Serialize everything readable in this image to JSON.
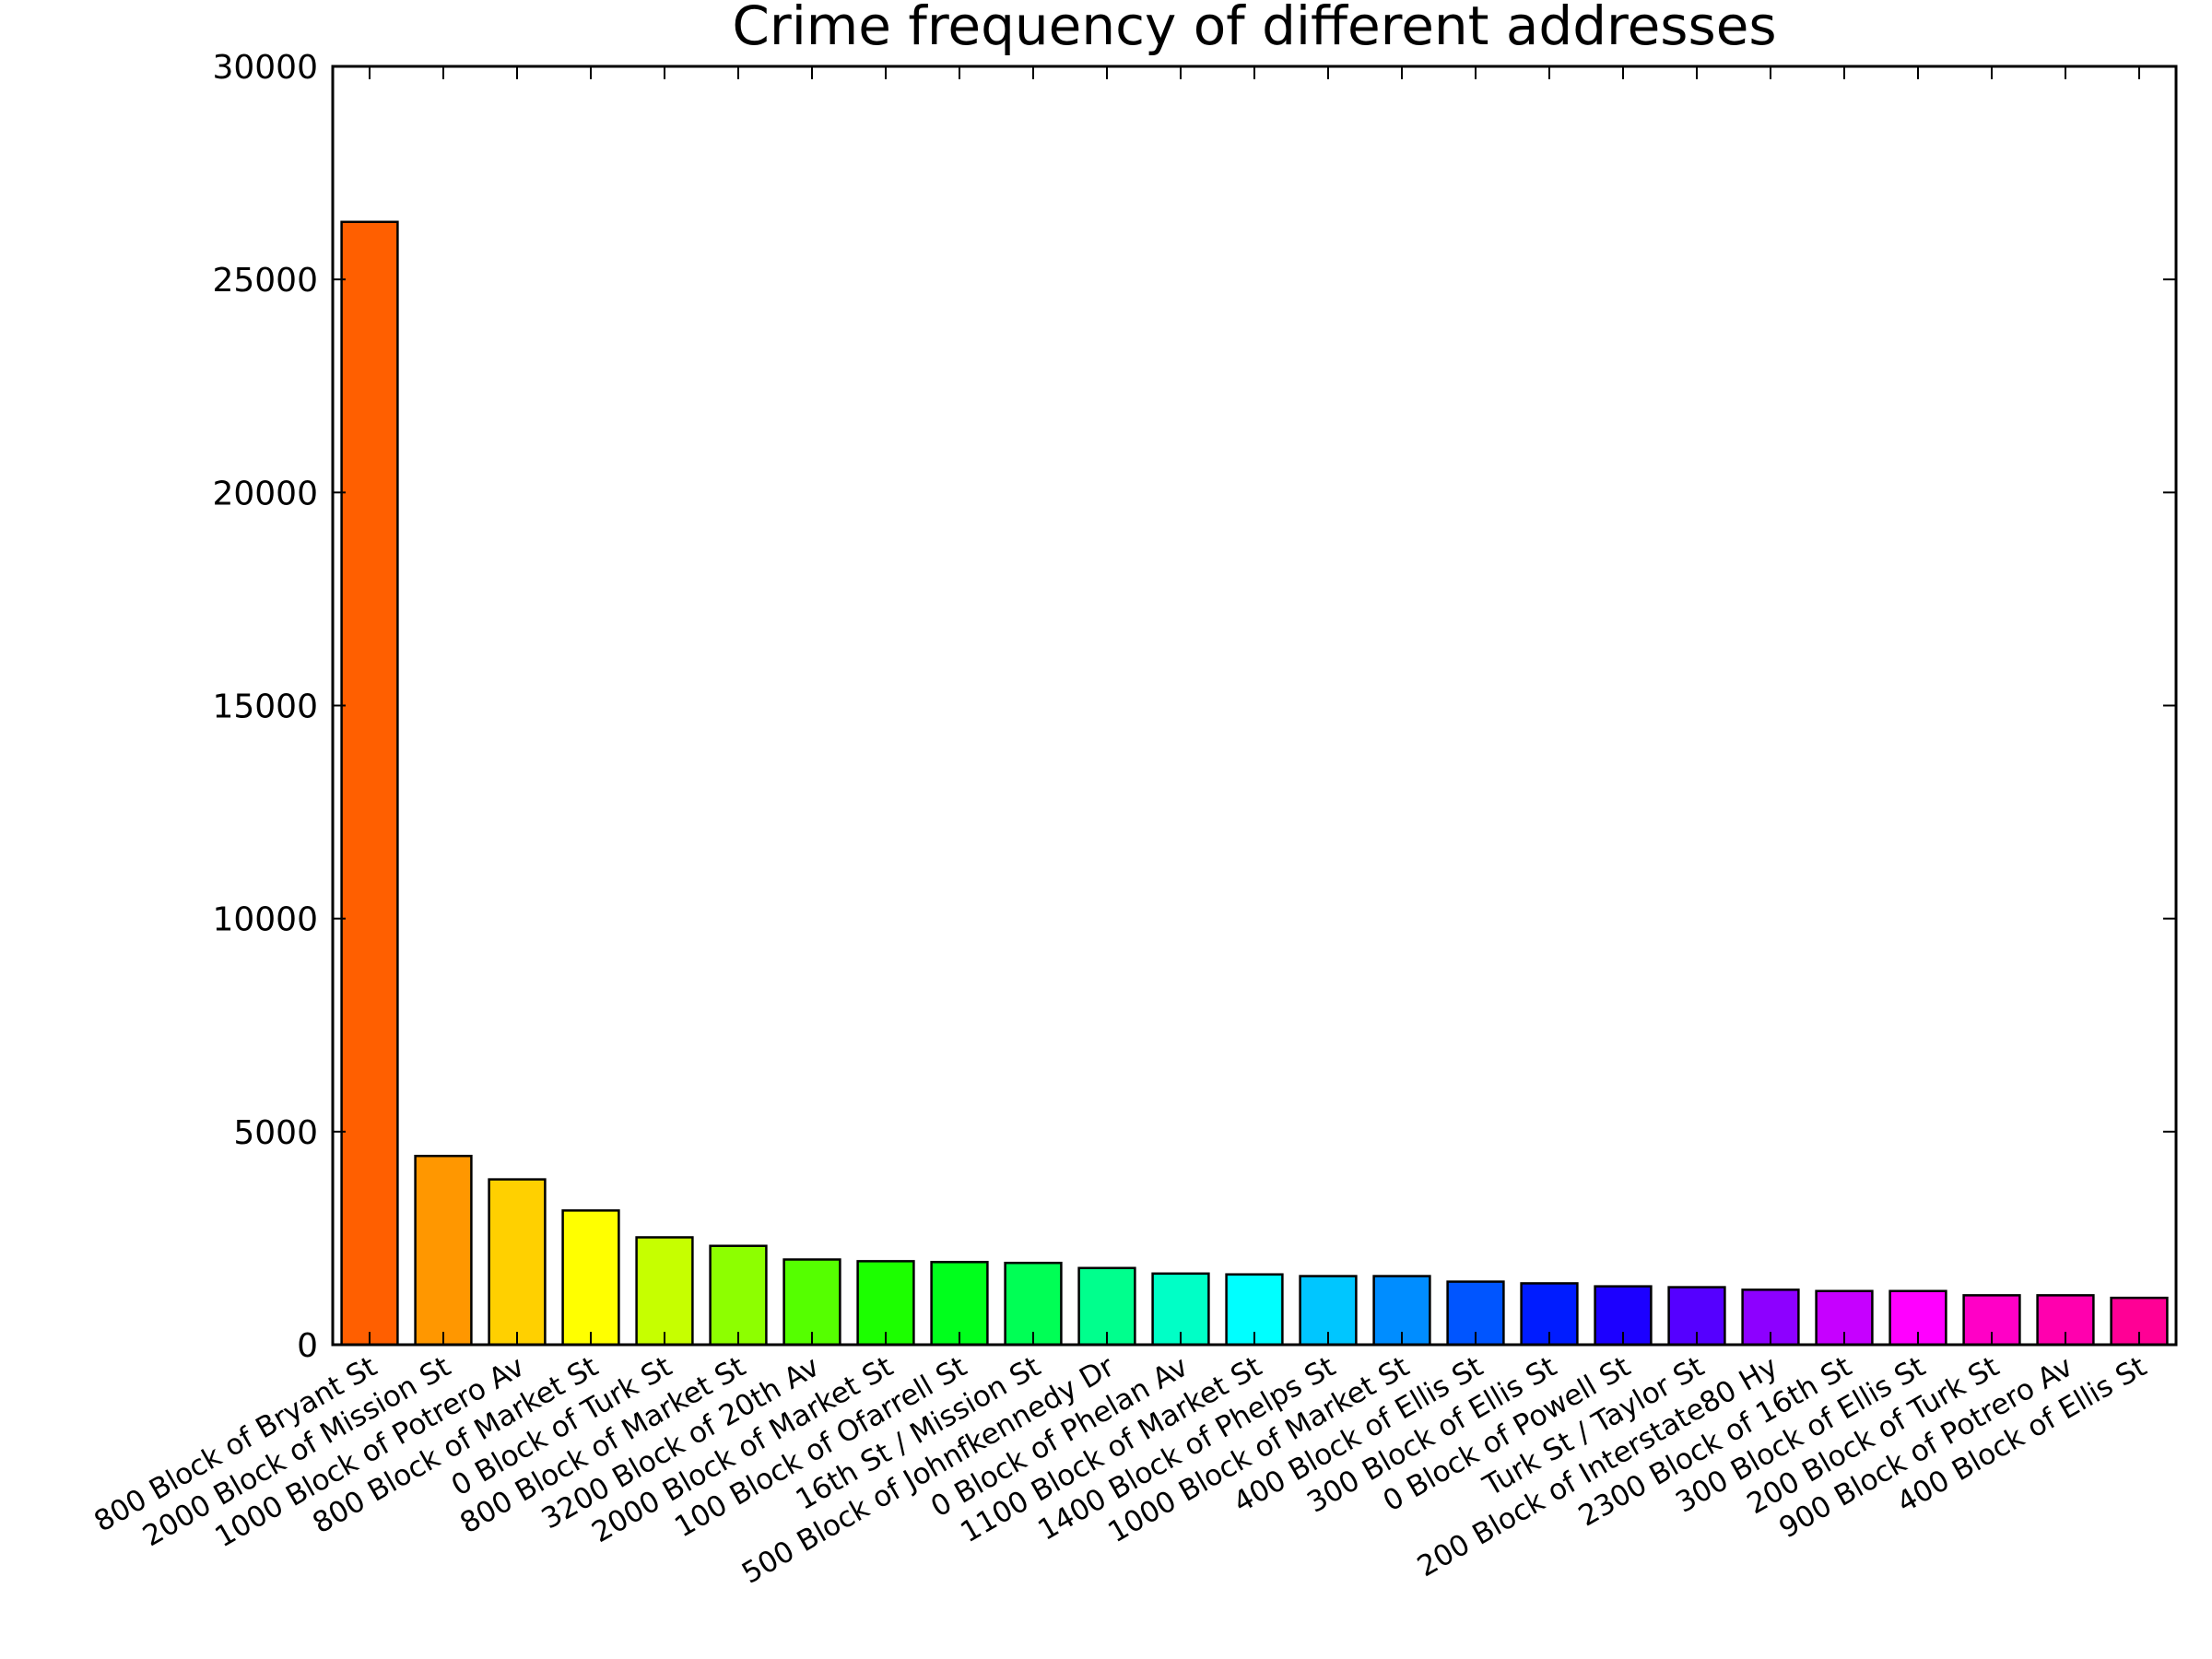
{
  "chart_data": {
    "type": "bar",
    "title": "Crime frequency of different addresses",
    "xlabel": "",
    "ylabel": "",
    "ylim": [
      0,
      30000
    ],
    "yticks": [
      0,
      5000,
      10000,
      15000,
      20000,
      25000,
      30000
    ],
    "ytick_labels": [
      "0",
      "5000",
      "10000",
      "15000",
      "20000",
      "25000",
      "30000"
    ],
    "grid": false,
    "legend": "none",
    "categories": [
      "800 Block of Bryant St",
      "2000 Block of Mission St",
      "1000 Block of Potrero Av",
      "800 Block of Market St",
      "0 Block of Turk St",
      "800 Block of Market St",
      "3200 Block of 20th Av",
      "2000 Block of Market St",
      "100 Block of Ofarrell St",
      "16th St / Mission St",
      "500 Block of Johnfkennedy Dr",
      "0 Block of Phelan Av",
      "1100 Block of Market St",
      "1400 Block of Phelps St",
      "1000 Block of Market St",
      "400 Block of Ellis St",
      "300 Block of Ellis St",
      "0 Block of Powell St",
      "Turk St / Taylor St",
      "200 Block of Interstate80 Hy",
      "2300 Block of 16th St",
      "300 Block of Ellis St",
      "200 Block of Turk St",
      "900 Block of Potrero Av",
      "400 Block of Ellis St"
    ],
    "values": [
      26350,
      4430,
      3880,
      3150,
      2520,
      2320,
      2000,
      1960,
      1940,
      1920,
      1800,
      1670,
      1650,
      1610,
      1610,
      1480,
      1440,
      1370,
      1350,
      1290,
      1260,
      1260,
      1160,
      1160,
      1100
    ],
    "colors": [
      "#ff5f00",
      "#ff9700",
      "#ffd000",
      "#ffff00",
      "#c6ff00",
      "#8dff00",
      "#55ff00",
      "#1cff00",
      "#00ff1c",
      "#00ff55",
      "#00ff8d",
      "#00ffc6",
      "#00ffff",
      "#00c6ff",
      "#008dff",
      "#0055ff",
      "#001cff",
      "#1c00ff",
      "#5500ff",
      "#8d00ff",
      "#c600ff",
      "#ff00ff",
      "#ff00c6",
      "#ff00ae",
      "#ff0095"
    ]
  }
}
